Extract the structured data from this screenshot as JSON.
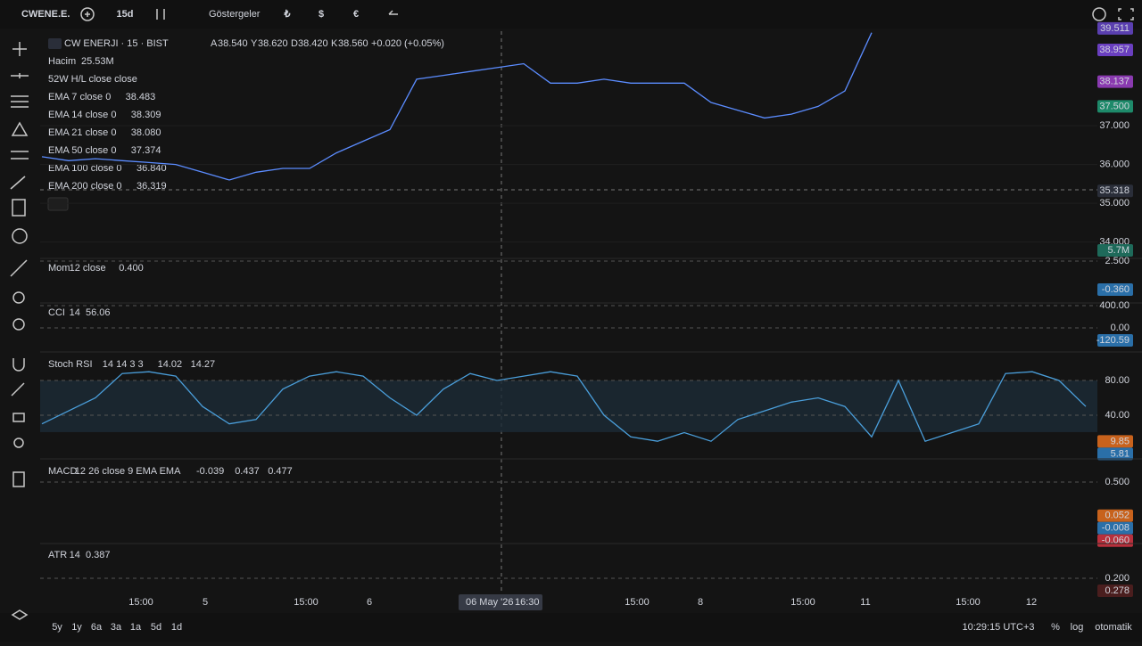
{
  "toolbar": {
    "symbol": "CWENE.E.",
    "interval": "15d",
    "indicators": "Göstergeler",
    "currencies": [
      "₺",
      "$",
      "€"
    ]
  },
  "legend": {
    "title": "CW ENERJI · 15 · BIST",
    "ohlc": [
      {
        "key": "A",
        "value": "38.540"
      },
      {
        "key": "Y",
        "value": "38.620"
      },
      {
        "key": "D",
        "value": "38.420"
      },
      {
        "key": "K",
        "value": "38.560"
      }
    ],
    "change": "+0.020 (+0.05%)",
    "rows": [
      {
        "name": "Hacim",
        "value": "25.53M",
        "color": "#26a69a"
      },
      {
        "name": "52W H/L close close"
      },
      {
        "name": "EMA 7 close 0",
        "value": "38.483",
        "color": "#4a7bff"
      },
      {
        "name": "EMA 14 close 0",
        "value": "38.309",
        "color": "#4a7bff"
      },
      {
        "name": "EMA 21 close 0",
        "value": "38.080",
        "color": "#5b5ef0"
      },
      {
        "name": "EMA 50 close 0",
        "value": "37.374",
        "color": "#8a4fe0"
      },
      {
        "name": "EMA 100 close 0",
        "value": "36.840",
        "color": "#a04ad8"
      },
      {
        "name": "EMA 200 close 0",
        "value": "36.319",
        "color": "#c040c8"
      }
    ]
  },
  "price": {
    "ylim": [
      33.6,
      39.44
    ],
    "color": "#5b8cff",
    "ticks": [
      {
        "value": 37,
        "label": "37.000"
      },
      {
        "value": 36,
        "label": "36.000"
      },
      {
        "value": 35,
        "label": "35.000"
      },
      {
        "value": 34,
        "label": "34.000"
      }
    ],
    "markers": [
      {
        "value": 39.511,
        "label": "39.511",
        "color": "#5a3fb0"
      },
      {
        "value": 38.957,
        "label": "38.957",
        "color": "#6a3fc0"
      },
      {
        "value": 38.137,
        "label": "38.137",
        "color": "#8a3ab0"
      },
      {
        "value": 37.5,
        "label": "37.500",
        "color": "#1e8a6a"
      },
      {
        "value": 35.318,
        "label": "35.318",
        "color": "#2a2e39"
      }
    ],
    "volume_label": "5.7M",
    "values": [
      36.2,
      36.1,
      36.15,
      36.1,
      36.05,
      36.0,
      35.8,
      35.6,
      35.8,
      35.9,
      35.9,
      36.3,
      36.6,
      36.9,
      38.2,
      38.3,
      38.4,
      38.5,
      38.6,
      38.1,
      38.1,
      38.2,
      38.1,
      38.1,
      38.1,
      37.6,
      37.4,
      37.2,
      37.3,
      37.5,
      37.9,
      39.4
    ]
  },
  "panes": [
    {
      "name": "Mom",
      "params": "12 close",
      "values": [
        {
          "text": "0.400",
          "color": "#4a9eda"
        }
      ],
      "ylim": [
        -1.7,
        2.77
      ],
      "ticks": [
        {
          "value": 2.5,
          "label": "2.500"
        }
      ],
      "markers": [
        {
          "value": -0.36,
          "label": "-0.360",
          "color": "#2a6fa8"
        }
      ]
    },
    {
      "name": "CCI",
      "params": "14",
      "values": [
        {
          "text": "56.06",
          "color": "#4a9eda"
        }
      ],
      "ylim": [
        -432,
        448
      ],
      "ticks": [
        {
          "value": 400,
          "label": "400.00"
        },
        {
          "value": 0,
          "label": "0.00"
        }
      ],
      "markers": [
        {
          "value": -120.59,
          "label": "-120.59",
          "color": "#2a6fa8"
        }
      ]
    },
    {
      "name": "Stoch RSI",
      "params": "14 14 3 3",
      "values": [
        {
          "text": "14.02",
          "color": "#4a9eda"
        },
        {
          "text": "14.27",
          "color": "#f0883e"
        }
      ],
      "ylim": [
        -10.3,
        112.8
      ],
      "ticks": [
        {
          "value": 80,
          "label": "80.00"
        },
        {
          "value": 40,
          "label": "40.00"
        }
      ],
      "markers": [
        {
          "value": 9.85,
          "label": "9.85",
          "color": "#c8621c"
        },
        {
          "value": 5.81,
          "label": "5.81",
          "color": "#2a6fa8"
        }
      ],
      "k": [
        30,
        45,
        60,
        88,
        90,
        85,
        50,
        30,
        35,
        70,
        85,
        90,
        85,
        60,
        40,
        70,
        88,
        80,
        85,
        90,
        85,
        40,
        15,
        10,
        20,
        10,
        35,
        45,
        55,
        60,
        50,
        15,
        80,
        10,
        20,
        30,
        88,
        90,
        80,
        50
      ],
      "k_color": "#4a9eda"
    },
    {
      "name": "MACD",
      "params": "12 26 close 9 EMA EMA",
      "values": [
        {
          "text": "-0.039",
          "color": "#f05060"
        },
        {
          "text": "0.437",
          "color": "#4a9eda"
        },
        {
          "text": "0.477",
          "color": "#f0883e"
        }
      ],
      "ylim": [
        -0.32,
        0.81
      ],
      "ticks": [
        {
          "value": 0.5,
          "label": "0.500"
        }
      ],
      "markers": [
        {
          "value": 0.052,
          "label": "0.052",
          "color": "#c8621c"
        },
        {
          "value": -0.008,
          "label": "-0.008",
          "color": "#2a6fa8"
        },
        {
          "value": -0.06,
          "label": "-0.060",
          "color": "#b8303c"
        }
      ]
    },
    {
      "name": "ATR",
      "params": "14",
      "values": [
        {
          "text": "0.387",
          "color": "#6a2a2a"
        }
      ],
      "ylim": [
        0.134,
        0.434
      ],
      "ticks": [
        {
          "value": 0.2,
          "label": "0.200"
        }
      ],
      "markers": [
        {
          "value": 0.278,
          "label": "0.278",
          "color": "#4a1e1e"
        }
      ]
    }
  ],
  "time_axis": {
    "labels": [
      "15:00",
      "5",
      "15:00",
      "6",
      "15:00",
      "8",
      "15:00",
      "11",
      "15:00",
      "12"
    ],
    "cursor_date": "06 May '26",
    "cursor_time": "16:30"
  },
  "bottom": {
    "ranges": [
      "5y",
      "1y",
      "6a",
      "3a",
      "1a",
      "5d",
      "1d"
    ],
    "clock": "10:29:15 UTC+3",
    "percent": "%",
    "log": "log",
    "auto": "otomatik"
  }
}
